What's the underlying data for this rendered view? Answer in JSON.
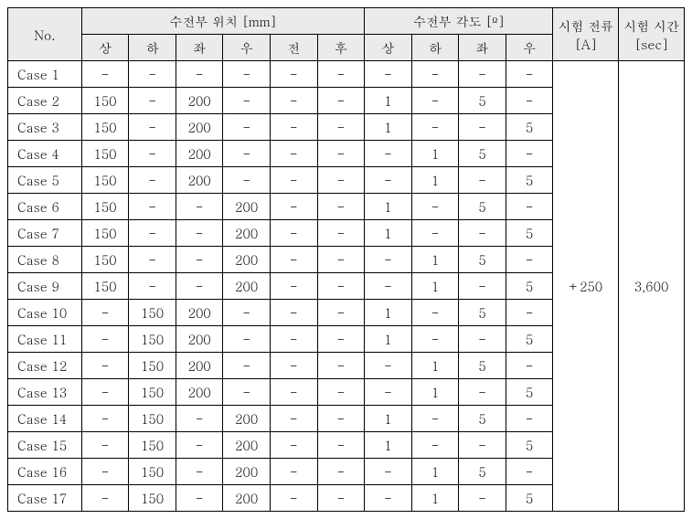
{
  "headers": {
    "no": "No.",
    "position_group": "수전부 위치 [mm]",
    "angle_group": "수전부 각도 [º]",
    "current": "시험 전류",
    "current_unit": "[A]",
    "time": "시험 시간",
    "time_unit": "[sec]",
    "pos_cols": [
      "상",
      "하",
      "좌",
      "우",
      "전",
      "후"
    ],
    "ang_cols": [
      "상",
      "하",
      "좌",
      "우"
    ]
  },
  "current_value": "+250",
  "time_value": "3,600",
  "rows": [
    {
      "no": "Case 1",
      "pos": [
        "-",
        "-",
        "-",
        "-",
        "-",
        "-"
      ],
      "ang": [
        "-",
        "-",
        "-",
        "-"
      ]
    },
    {
      "no": "Case 2",
      "pos": [
        "150",
        "-",
        "200",
        "-",
        "-",
        "-"
      ],
      "ang": [
        "1",
        "-",
        "5",
        "-"
      ]
    },
    {
      "no": "Case 3",
      "pos": [
        "150",
        "-",
        "200",
        "-",
        "-",
        "-"
      ],
      "ang": [
        "1",
        "-",
        "-",
        "5"
      ]
    },
    {
      "no": "Case 4",
      "pos": [
        "150",
        "-",
        "200",
        "-",
        "-",
        "-"
      ],
      "ang": [
        "-",
        "1",
        "5",
        "-"
      ]
    },
    {
      "no": "Case 5",
      "pos": [
        "150",
        "-",
        "200",
        "-",
        "-",
        "-"
      ],
      "ang": [
        "-",
        "1",
        "-",
        "5"
      ]
    },
    {
      "no": "Case 6",
      "pos": [
        "150",
        "-",
        "-",
        "200",
        "-",
        "-"
      ],
      "ang": [
        "1",
        "-",
        "5",
        "-"
      ]
    },
    {
      "no": "Case 7",
      "pos": [
        "150",
        "-",
        "-",
        "200",
        "-",
        "-"
      ],
      "ang": [
        "1",
        "-",
        "-",
        "5"
      ]
    },
    {
      "no": "Case 8",
      "pos": [
        "150",
        "-",
        "-",
        "200",
        "-",
        "-"
      ],
      "ang": [
        "-",
        "1",
        "5",
        "-"
      ]
    },
    {
      "no": "Case 9",
      "pos": [
        "150",
        "-",
        "-",
        "200",
        "-",
        "-"
      ],
      "ang": [
        "-",
        "1",
        "-",
        "5"
      ]
    },
    {
      "no": "Case 10",
      "pos": [
        "-",
        "150",
        "200",
        "-",
        "-",
        "-"
      ],
      "ang": [
        "1",
        "-",
        "5",
        "-"
      ]
    },
    {
      "no": "Case 11",
      "pos": [
        "-",
        "150",
        "200",
        "-",
        "-",
        "-"
      ],
      "ang": [
        "1",
        "-",
        "-",
        "5"
      ]
    },
    {
      "no": "Case 12",
      "pos": [
        "-",
        "150",
        "200",
        "-",
        "-",
        "-"
      ],
      "ang": [
        "-",
        "1",
        "5",
        "-"
      ]
    },
    {
      "no": "Case 13",
      "pos": [
        "-",
        "150",
        "200",
        "-",
        "-",
        "-"
      ],
      "ang": [
        "-",
        "1",
        "-",
        "5"
      ]
    },
    {
      "no": "Case 14",
      "pos": [
        "-",
        "150",
        "-",
        "200",
        "-",
        "-"
      ],
      "ang": [
        "1",
        "-",
        "5",
        "-"
      ]
    },
    {
      "no": "Case 15",
      "pos": [
        "-",
        "150",
        "-",
        "200",
        "-",
        "-"
      ],
      "ang": [
        "1",
        "-",
        "-",
        "5"
      ]
    },
    {
      "no": "Case 16",
      "pos": [
        "-",
        "150",
        "-",
        "200",
        "-",
        "-"
      ],
      "ang": [
        "-",
        "1",
        "5",
        "-"
      ]
    },
    {
      "no": "Case 17",
      "pos": [
        "-",
        "150",
        "-",
        "200",
        "-",
        "-"
      ],
      "ang": [
        "-",
        "1",
        "-",
        "5"
      ]
    }
  ]
}
